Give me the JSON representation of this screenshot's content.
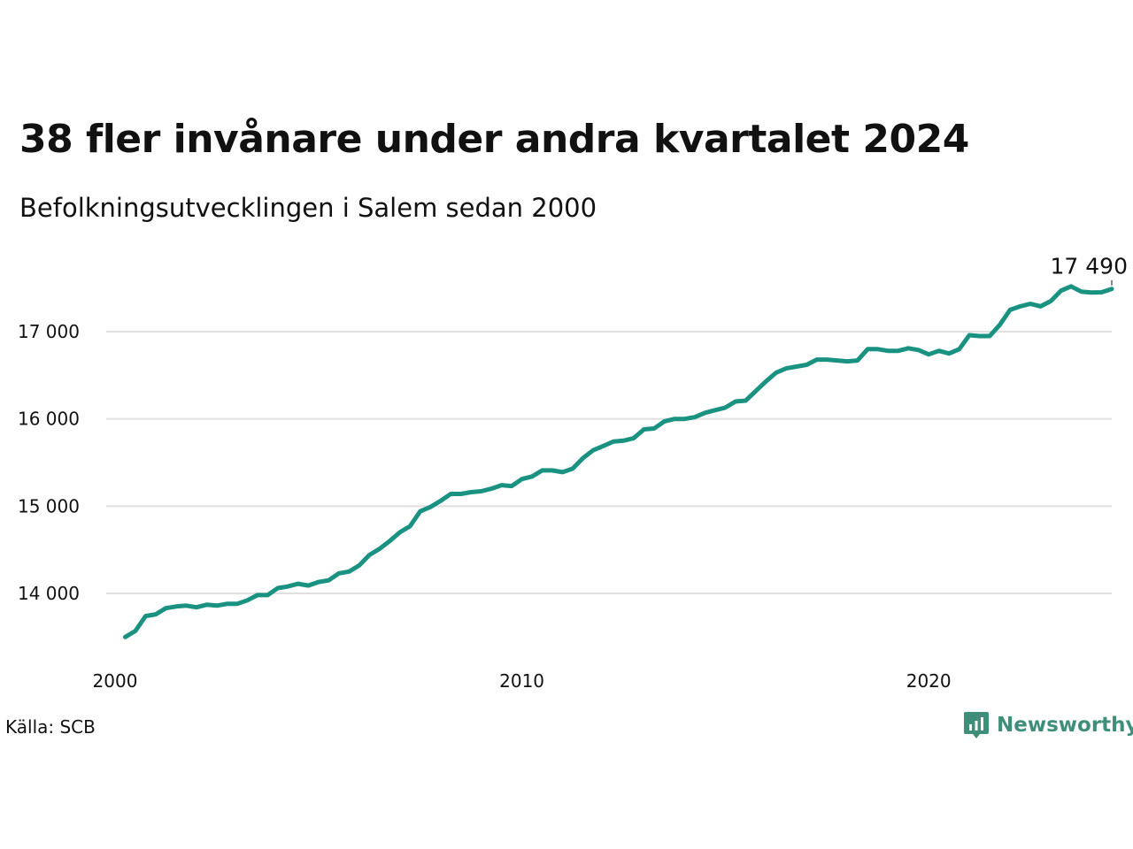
{
  "title": "38 fler invånare under andra kvartalet 2024",
  "subtitle": "Befolkningsutvecklingen i Salem sedan 2000",
  "source": "Källa: SCB",
  "brand": {
    "name": "Newsworthy",
    "icon": "newsworthy-logo-icon",
    "color": "#3e8e7a"
  },
  "chart_data": {
    "type": "line",
    "line_color": "#1a9281",
    "grid": true,
    "x_unit": "year (quarterly)",
    "xlim": [
      2000,
      2024.5
    ],
    "ylim": [
      13300,
      17700
    ],
    "x_ticks": [
      2000,
      2010,
      2020
    ],
    "x_tick_labels": [
      "2000",
      "2010",
      "2020"
    ],
    "y_ticks": [
      14000,
      15000,
      16000,
      17000
    ],
    "y_tick_labels": [
      "14 000",
      "15 000",
      "16 000",
      "17 000"
    ],
    "end_label": "17 490",
    "series": [
      {
        "x_start": 2000.25,
        "x_step": 0.25,
        "values": [
          13500,
          13570,
          13740,
          13760,
          13830,
          13850,
          13860,
          13840,
          13870,
          13860,
          13880,
          13880,
          13920,
          13980,
          13980,
          14060,
          14080,
          14110,
          14090,
          14130,
          14150,
          14230,
          14250,
          14320,
          14440,
          14510,
          14600,
          14700,
          14770,
          14940,
          14990,
          15060,
          15140,
          15140,
          15160,
          15170,
          15200,
          15240,
          15230,
          15310,
          15340,
          15410,
          15410,
          15390,
          15430,
          15550,
          15640,
          15690,
          15740,
          15750,
          15780,
          15880,
          15890,
          15970,
          16000,
          16000,
          16020,
          16070,
          16100,
          16130,
          16200,
          16210,
          16320,
          16430,
          16530,
          16580,
          16600,
          16620,
          16680,
          16680,
          16670,
          16660,
          16670,
          16800,
          16800,
          16780,
          16780,
          16810,
          16790,
          16740,
          16780,
          16750,
          16800,
          16960,
          16950,
          16950,
          17080,
          17250,
          17290,
          17320,
          17290,
          17350,
          17470,
          17520,
          17460,
          17450,
          17452,
          17490
        ]
      }
    ]
  }
}
